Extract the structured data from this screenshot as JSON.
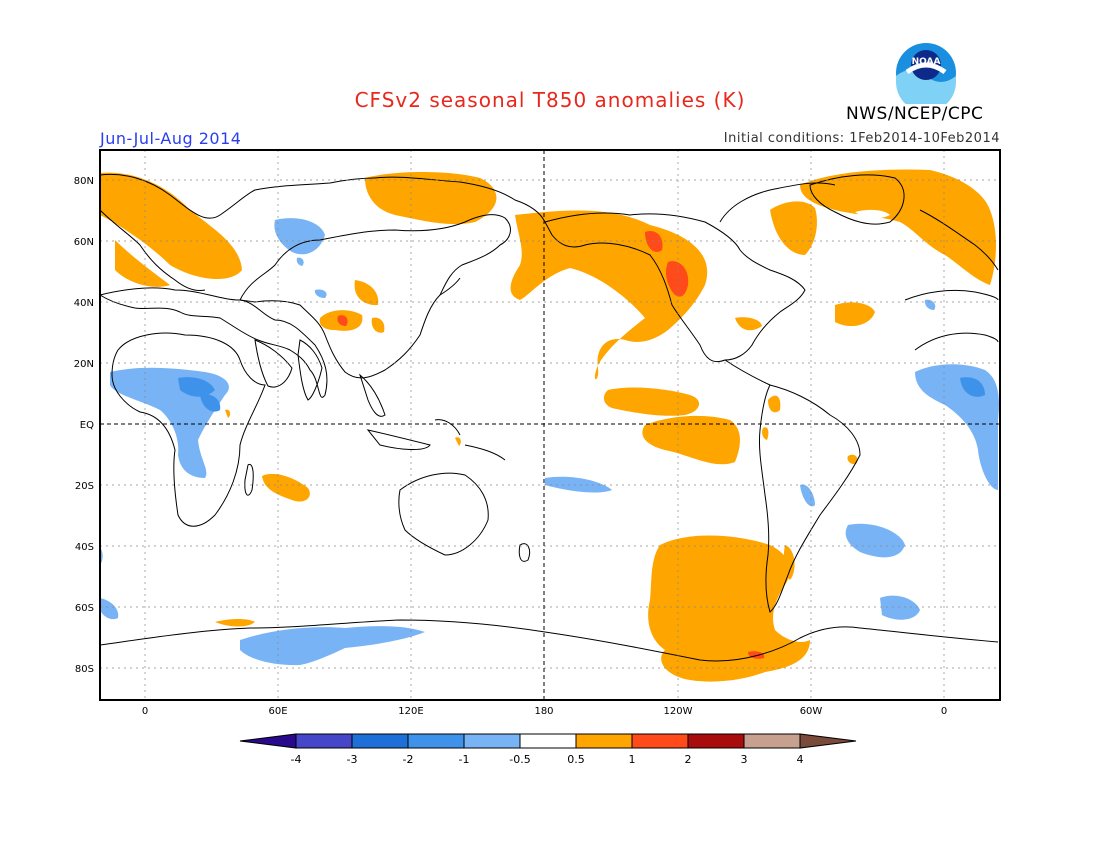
{
  "header": {
    "title": "CFSv2 seasonal T850 anomalies (K)",
    "season": "Jun-Jul-Aug 2014",
    "initial_conditions": "Initial conditions: 1Feb2014-10Feb2014",
    "agency": "NWS/NCEP/CPC",
    "logo_text": "NOAA"
  },
  "map": {
    "lat_labels": [
      "80N",
      "60N",
      "40N",
      "20N",
      "EQ",
      "20S",
      "40S",
      "60S",
      "80S"
    ],
    "lon_labels": [
      "0",
      "60E",
      "120E",
      "180",
      "120W",
      "60W",
      "0"
    ],
    "colors": {
      "land_outline": "#000000",
      "grid": "#888888"
    }
  },
  "legend": {
    "labels": [
      "-4",
      "-3",
      "-2",
      "-1",
      "-0.5",
      "0.5",
      "1",
      "2",
      "3",
      "4"
    ],
    "colors": [
      "#2a0a8c",
      "#4646c8",
      "#1f6fd8",
      "#3f92ea",
      "#78b4f5",
      "#ffffff",
      "#ffa500",
      "#ff4a1a",
      "#a80c0c",
      "#c8a090",
      "#7a4a3a"
    ]
  }
}
